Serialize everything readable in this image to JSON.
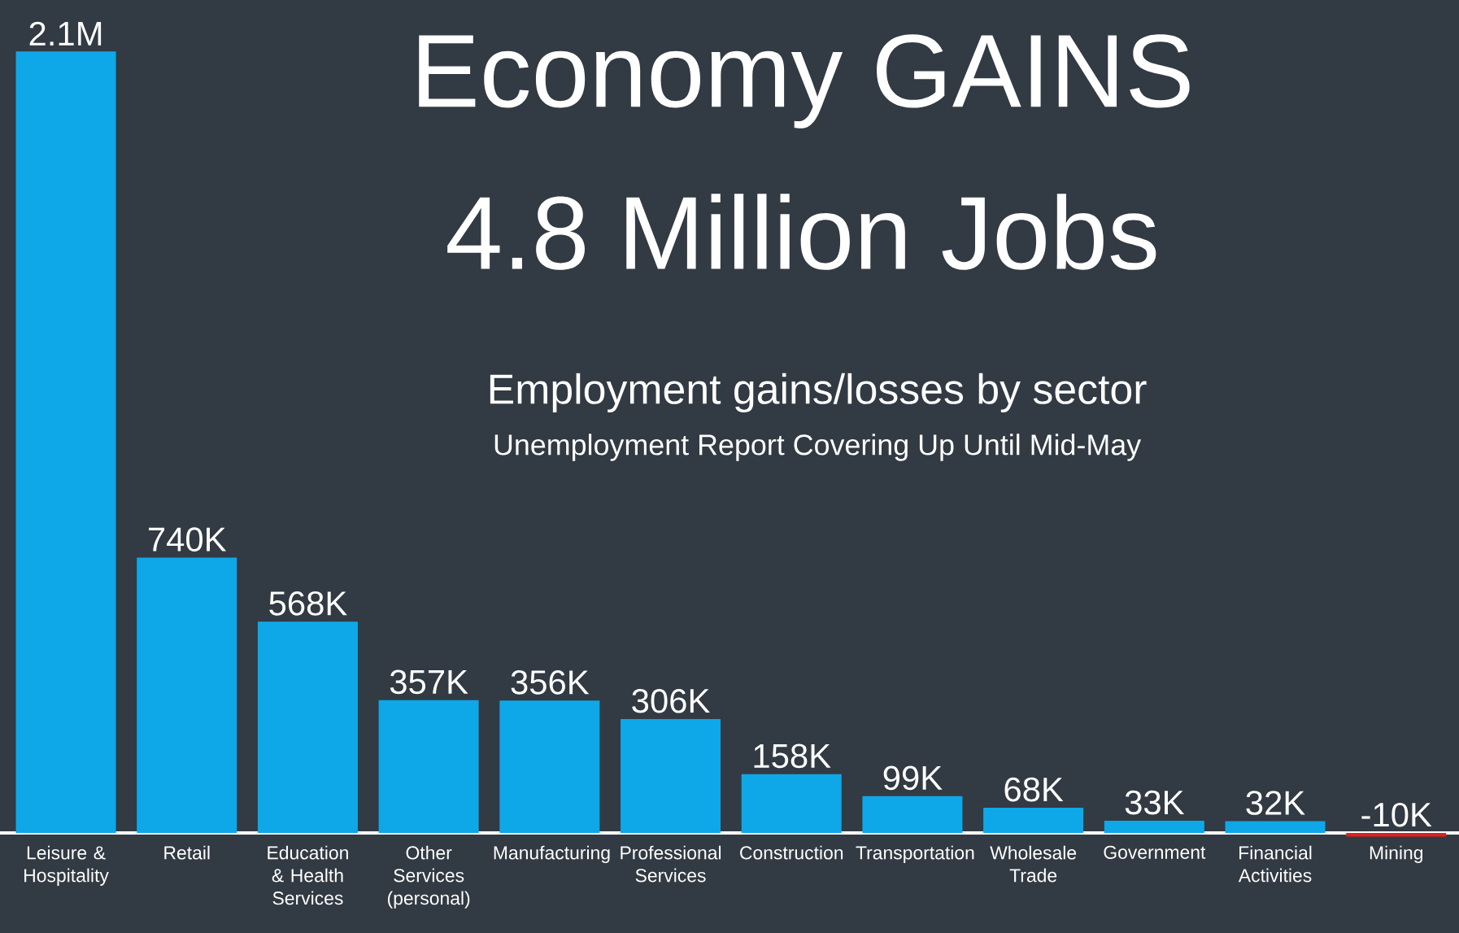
{
  "chart_data": {
    "type": "bar",
    "title": "Economy GAINS",
    "subtitle": "4.8 Million Jobs",
    "annotations": [
      "Employment gains/losses by sector",
      "Unemployment Report Covering Up Until Mid-May"
    ],
    "categories": [
      "Leisure & Hospitality",
      "Retail",
      "Education & Health Services",
      "Other Services (personal)",
      "Manufacturing",
      "Professional Services",
      "Construction",
      "Transportation",
      "Wholesale Trade",
      "Government",
      "Financial Activities",
      "Mining"
    ],
    "values": [
      2100000,
      740000,
      568000,
      357000,
      356000,
      306000,
      158000,
      99000,
      68000,
      33000,
      32000,
      -10000
    ],
    "value_labels": [
      "2.1M",
      "740K",
      "568K",
      "357K",
      "356K",
      "306K",
      "158K",
      "99K",
      "68K",
      "33K",
      "32K",
      "-10K"
    ],
    "colors": [
      "#0ea8e9",
      "#0ea8e9",
      "#0ea8e9",
      "#0ea8e9",
      "#0ea8e9",
      "#0ea8e9",
      "#0ea8e9",
      "#0ea8e9",
      "#0ea8e9",
      "#0ea8e9",
      "#0ea8e9",
      "#e02020"
    ]
  }
}
